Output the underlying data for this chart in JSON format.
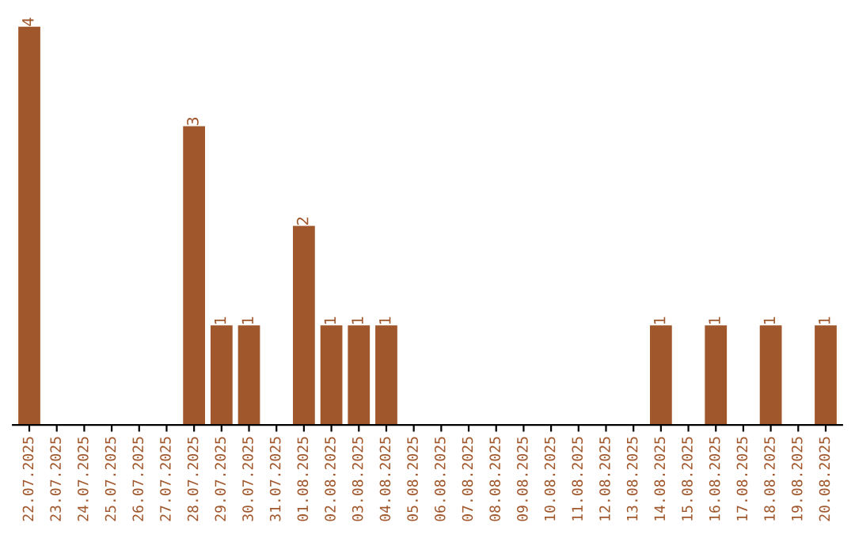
{
  "chart_data": {
    "type": "bar",
    "categories": [
      "22.07.2025",
      "23.07.2025",
      "24.07.2025",
      "25.07.2025",
      "26.07.2025",
      "27.07.2025",
      "28.07.2025",
      "29.07.2025",
      "30.07.2025",
      "31.07.2025",
      "01.08.2025",
      "02.08.2025",
      "03.08.2025",
      "04.08.2025",
      "05.08.2025",
      "06.08.2025",
      "07.08.2025",
      "08.08.2025",
      "09.08.2025",
      "10.08.2025",
      "11.08.2025",
      "12.08.2025",
      "13.08.2025",
      "14.08.2025",
      "15.08.2025",
      "16.08.2025",
      "17.08.2025",
      "18.08.2025",
      "19.08.2025",
      "20.08.2025"
    ],
    "values": [
      4,
      0,
      0,
      0,
      0,
      0,
      3,
      1,
      1,
      0,
      2,
      1,
      1,
      1,
      0,
      0,
      0,
      0,
      0,
      0,
      0,
      0,
      0,
      1,
      0,
      1,
      0,
      1,
      0,
      1
    ],
    "value_labels": [
      "4",
      null,
      null,
      null,
      null,
      null,
      "3",
      "1",
      "1",
      null,
      "2",
      "1",
      "1",
      "1",
      null,
      null,
      null,
      null,
      null,
      null,
      null,
      null,
      null,
      "1",
      null,
      "1",
      null,
      "1",
      null,
      "1"
    ],
    "color": "#a0572b",
    "tick_labels": "x",
    "grid": false,
    "legend": false
  }
}
